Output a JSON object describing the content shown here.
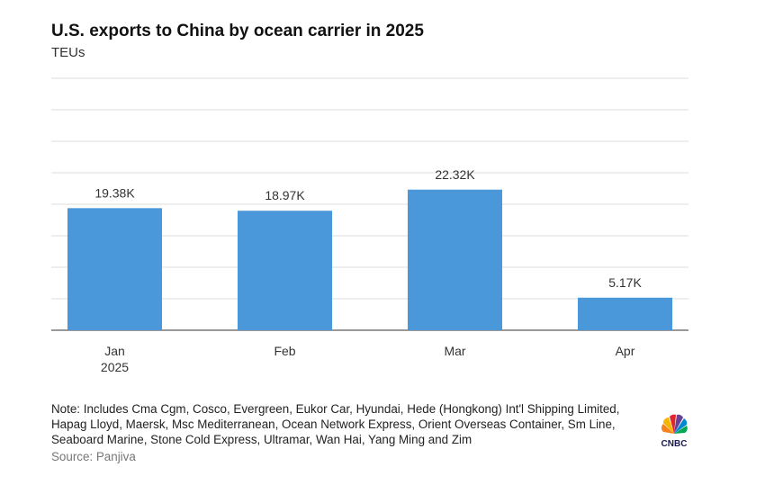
{
  "chart_data": {
    "type": "bar",
    "title": "U.S. exports to China by ocean carrier in 2025",
    "subtitle": "TEUs",
    "categories": [
      "Jan 2025",
      "Feb",
      "Mar",
      "Apr"
    ],
    "values": [
      19380,
      18970,
      22320,
      5170
    ],
    "value_labels": [
      "19.38K",
      "18.97K",
      "22.32K",
      "5.17K"
    ],
    "color": "#4a98d9",
    "ylim": [
      0,
      40000
    ],
    "yticks": [
      0,
      5000,
      10000,
      15000,
      20000,
      25000,
      30000,
      35000,
      40000
    ],
    "grid": true,
    "note": "Note: Includes Cma Cgm, Cosco, Evergreen, Eukor Car, Hyundai, Hede (Hongkong) Int'l Shipping Limited, Hapag Lloyd, Maersk, Msc Mediterranean, Ocean Network Express, Orient Overseas Container, Sm Line, Seaboard Marine, Stone Cold Express, Ultramar, Wan Hai, Yang Ming and Zim",
    "source": "Source: Panjiva",
    "logo": "CNBC"
  }
}
